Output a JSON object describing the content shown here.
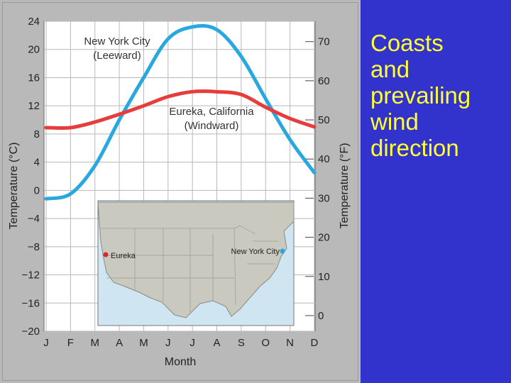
{
  "chart_data": {
    "type": "line",
    "title": "",
    "xlabel": "Month",
    "ylabel": "Temperature (°C)",
    "ylabel_right": "Temperature (°F)",
    "categories": [
      "J",
      "F",
      "M",
      "A",
      "M",
      "J",
      "J",
      "A",
      "S",
      "O",
      "N",
      "D"
    ],
    "ylim": [
      -20,
      24
    ],
    "y_ticks": [
      "24",
      "20",
      "16",
      "12",
      "8",
      "4",
      "0",
      "−4",
      "−8",
      "−12",
      "−16",
      "−20"
    ],
    "y_tick_values": [
      24,
      20,
      16,
      12,
      8,
      4,
      0,
      -4,
      -8,
      -12,
      -16,
      -20
    ],
    "y_right_ticks": [
      "70",
      "60",
      "50",
      "40",
      "30",
      "20",
      "10",
      "0"
    ],
    "y_right_tick_values": [
      70,
      60,
      50,
      40,
      30,
      20,
      10,
      0
    ],
    "grid": true,
    "series": [
      {
        "name": "New York City (Leeward)",
        "label_lines": [
          "New York City",
          "(Leeward)"
        ],
        "color": "#29a8e0",
        "values": [
          -1.2,
          -0.5,
          3.5,
          10.0,
          16.0,
          21.5,
          23.2,
          22.8,
          19.0,
          13.0,
          7.2,
          2.5
        ]
      },
      {
        "name": "Eureka, California (Windward)",
        "label_lines": [
          "Eureka, California",
          "(Windward)"
        ],
        "color": "#e63c3c",
        "values": [
          8.9,
          8.9,
          9.7,
          10.8,
          12.0,
          13.3,
          14.0,
          14.0,
          13.6,
          11.8,
          10.2,
          9.0
        ]
      }
    ]
  },
  "map_inset": {
    "cities": [
      {
        "label": "Eureka",
        "color": "#d62828"
      },
      {
        "label": "New York City",
        "color": "#29a8e0"
      }
    ]
  },
  "side_title": [
    "Coasts",
    "and",
    "prevailing",
    "wind",
    "direction"
  ],
  "colors": {
    "side_bg": "#3232cc",
    "side_text": "#ffff33"
  }
}
